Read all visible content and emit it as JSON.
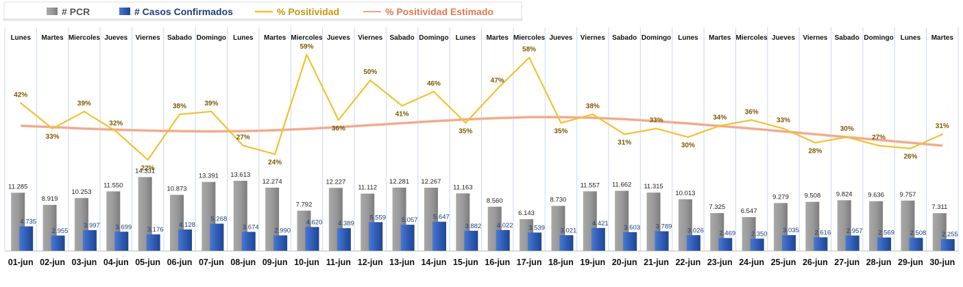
{
  "legend": [
    {
      "key": "pcr",
      "label": "# PCR",
      "color": "#8c8c8c",
      "swatch": "bar"
    },
    {
      "key": "confirmed",
      "label": "# Casos Confirmados",
      "color": "#2e5bb8",
      "swatch": "bar"
    },
    {
      "key": "positivity",
      "label": "% Positividad",
      "color": "#f2c12e",
      "swatch": "line"
    },
    {
      "key": "estimated",
      "label": "% Positividad Estimado",
      "color": "#f0a080",
      "swatch": "line"
    }
  ],
  "chart_data": {
    "type": "bar",
    "categories": [
      "01-jun",
      "02-jun",
      "03-jun",
      "04-jun",
      "05-jun",
      "06-jun",
      "07-jun",
      "08-jun",
      "09-jun",
      "10-jun",
      "11-jun",
      "12-jun",
      "13-jun",
      "14-jun",
      "15-jun",
      "16-jun",
      "17-jun",
      "18-jun",
      "19-jun",
      "20-jun",
      "21-jun",
      "22-jun",
      "23-jun",
      "24-jun",
      "25-jun",
      "26-jun",
      "27-jun",
      "28-jun",
      "29-jun",
      "30-jun"
    ],
    "weekdays": [
      "Lunes",
      "Martes",
      "Miercoles",
      "Jueves",
      "Viernes",
      "Sabado",
      "Domingo",
      "Lunes",
      "Martes",
      "Miercoles",
      "Jueves",
      "Viernes",
      "Sabado",
      "Domingo",
      "Lunes",
      "Martes",
      "Miercoles",
      "Jueves",
      "Viernes",
      "Sabado",
      "Domingo",
      "Lunes",
      "Martes",
      "Miercoles",
      "Jueves",
      "Viernes",
      "Sabado",
      "Domingo",
      "Lunes",
      "Martes"
    ],
    "series": [
      {
        "name": "# PCR",
        "type": "bar",
        "values": [
          11285,
          8919,
          10253,
          11550,
          14331,
          10873,
          13391,
          13613,
          12274,
          7792,
          12227,
          11112,
          12281,
          12267,
          11163,
          8560,
          6143,
          8730,
          11557,
          11662,
          11315,
          10013,
          7325,
          6547,
          9279,
          9508,
          9824,
          9636,
          9757,
          7311
        ],
        "labels": [
          "11.285",
          "8.919",
          "10.253",
          "11.550",
          "14.331",
          "10.873",
          "13.391",
          "13.613",
          "12.274",
          "7.792",
          "12.227",
          "11.112",
          "12.281",
          "12.267",
          "11.163",
          "8.560",
          "6.143",
          "8.730",
          "11.557",
          "11.662",
          "11.315",
          "10.013",
          "7.325",
          "6.547",
          "9.279",
          "9.508",
          "9.824",
          "9.636",
          "9.757",
          "7.311"
        ]
      },
      {
        "name": "# Casos Confirmados",
        "type": "bar",
        "values": [
          4735,
          2955,
          3997,
          3699,
          3176,
          4128,
          5268,
          3674,
          2990,
          4620,
          4389,
          5559,
          5057,
          5647,
          3882,
          4022,
          3539,
          3021,
          4421,
          3603,
          3789,
          3026,
          2469,
          2350,
          3035,
          2616,
          2957,
          2569,
          2508,
          2255
        ],
        "labels": [
          "4.735",
          "2.955",
          "3.997",
          "3.699",
          "3.176",
          "4.128",
          "5.268",
          "3.674",
          "2.990",
          "4.620",
          "4.389",
          "5.559",
          "5.057",
          "5.647",
          "3.882",
          "4.022",
          "3.539",
          "3.021",
          "4.421",
          "3.603",
          "3.789",
          "3.026",
          "2.469",
          "2.350",
          "3.035",
          "2.616",
          "2.957",
          "2.569",
          "2.508",
          "2.255"
        ]
      },
      {
        "name": "% Positividad",
        "type": "line",
        "values": [
          42,
          33,
          39,
          32,
          22,
          38,
          39,
          27,
          24,
          59,
          36,
          50,
          41,
          46,
          35,
          47,
          58,
          35,
          38,
          31,
          33,
          30,
          34,
          36,
          33,
          28,
          30,
          27,
          26,
          31
        ],
        "labels": [
          "42%",
          "33%",
          "39%",
          "32%",
          "22%",
          "38%",
          "39%",
          "27%",
          "24%",
          "59%",
          "36%",
          "50%",
          "41%",
          "46%",
          "35%",
          "47%",
          "58%",
          "35%",
          "38%",
          "31%",
          "33%",
          "30%",
          "34%",
          "36%",
          "33%",
          "28%",
          "30%",
          "27%",
          "26%",
          "31%"
        ]
      },
      {
        "name": "% Positividad Estimado",
        "type": "line",
        "values": [
          34,
          33.5,
          33,
          32.6,
          32.3,
          32.1,
          32,
          32.1,
          32.4,
          32.9,
          33.5,
          34.2,
          34.9,
          35.6,
          36.2,
          36.7,
          37,
          37,
          36.8,
          36.3,
          35.6,
          34.8,
          33.9,
          33,
          32,
          31,
          30,
          29,
          28,
          27
        ]
      }
    ],
    "scales": {
      "bars_max": 40000,
      "positivity_range": [
        -10,
        65
      ]
    },
    "grid": {
      "vertical": true,
      "horizontal": false
    }
  }
}
